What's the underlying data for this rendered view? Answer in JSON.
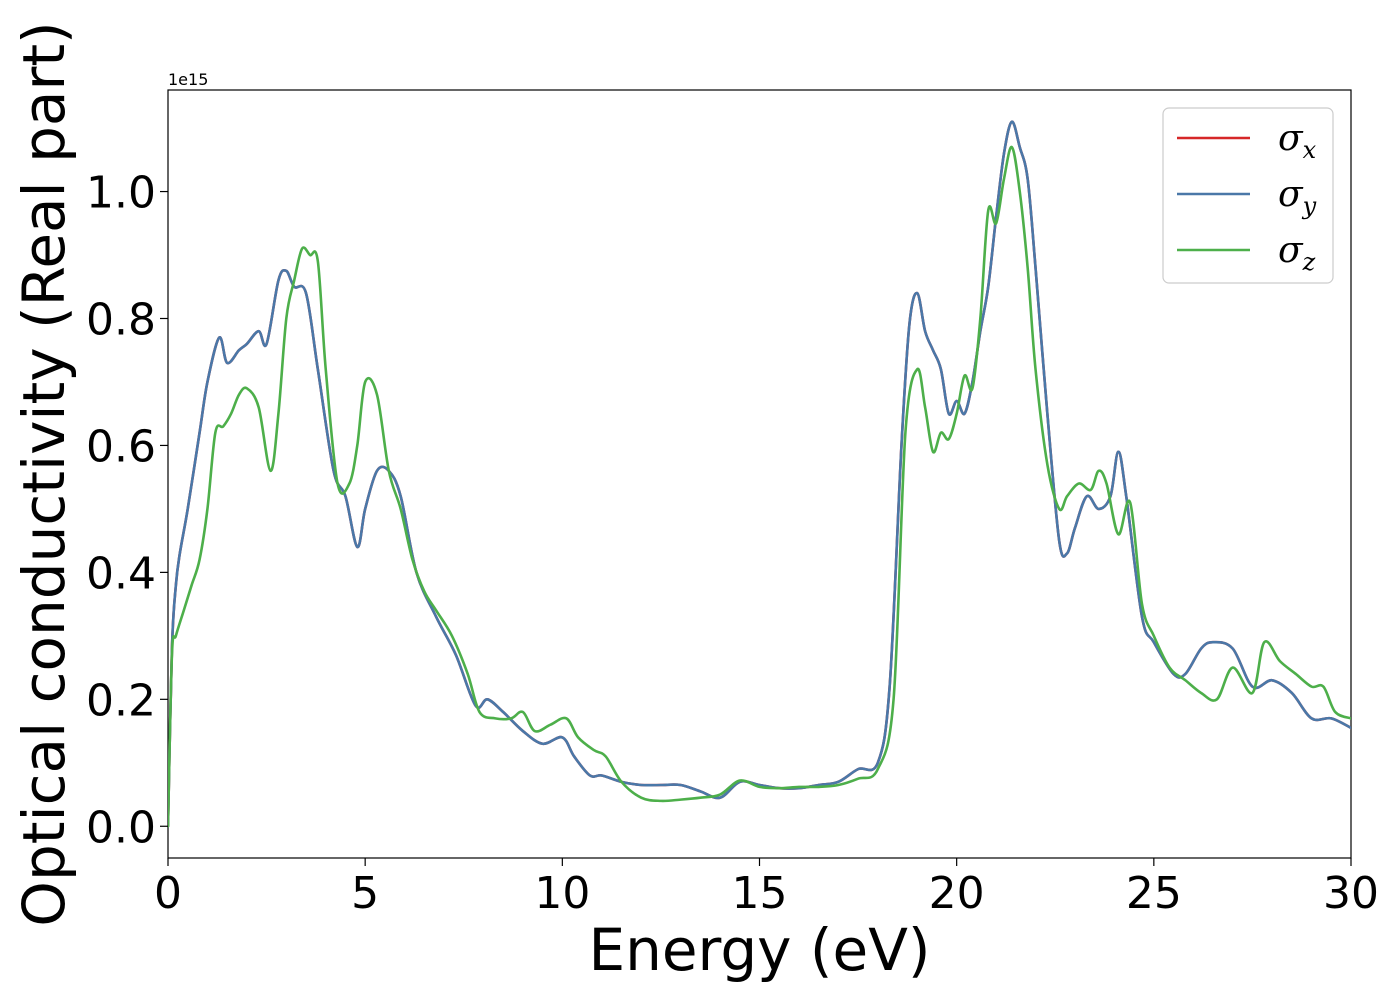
{
  "chart_data": {
    "type": "line",
    "title": "",
    "xlabel": "Energy (eV)",
    "ylabel": "Optical conductivity (Real part)",
    "y_offset_label": "1e15",
    "xlim": [
      0,
      30
    ],
    "ylim": [
      -0.05,
      1.16
    ],
    "xticks": [
      0,
      5,
      10,
      15,
      20,
      25,
      30
    ],
    "xtick_labels": [
      "0",
      "5",
      "10",
      "15",
      "20",
      "25",
      "30"
    ],
    "yticks": [
      0.0,
      0.2,
      0.4,
      0.6,
      0.8,
      1.0
    ],
    "ytick_labels": [
      "0.0",
      "0.2",
      "0.4",
      "0.6",
      "0.8",
      "1.0"
    ],
    "grid": false,
    "legend_position": "top-right",
    "series": [
      {
        "name": "σx",
        "legend_base": "σ",
        "legend_sub": "x",
        "color": "#d62728",
        "x": [
          0,
          0.1,
          0.2,
          0.3,
          0.5,
          0.8,
          1.0,
          1.3,
          1.5,
          1.8,
          2.0,
          2.3,
          2.5,
          2.8,
          3.0,
          3.2,
          3.5,
          3.8,
          4.2,
          4.5,
          4.8,
          5.0,
          5.3,
          5.6,
          5.9,
          6.3,
          6.8,
          7.3,
          7.8,
          8.1,
          8.5,
          9.0,
          9.5,
          10.0,
          10.3,
          10.7,
          11.0,
          11.5,
          12.0,
          12.5,
          13.0,
          13.5,
          14.0,
          14.5,
          15.0,
          15.5,
          16.0,
          16.5,
          17.0,
          17.5,
          18.0,
          18.3,
          18.6,
          18.8,
          19.0,
          19.2,
          19.4,
          19.6,
          19.8,
          20.0,
          20.2,
          20.4,
          20.6,
          20.8,
          21.0,
          21.2,
          21.4,
          21.6,
          21.8,
          22.0,
          22.3,
          22.6,
          22.8,
          23.0,
          23.3,
          23.6,
          23.9,
          24.1,
          24.3,
          24.7,
          25.0,
          25.5,
          25.8,
          26.2,
          26.5,
          27.0,
          27.5,
          28.0,
          28.5,
          29.0,
          29.5,
          30.0
        ],
        "y": [
          0.0,
          0.28,
          0.38,
          0.43,
          0.5,
          0.62,
          0.7,
          0.77,
          0.73,
          0.75,
          0.76,
          0.78,
          0.76,
          0.86,
          0.875,
          0.85,
          0.84,
          0.72,
          0.56,
          0.52,
          0.44,
          0.5,
          0.56,
          0.56,
          0.52,
          0.4,
          0.33,
          0.27,
          0.19,
          0.2,
          0.18,
          0.15,
          0.13,
          0.14,
          0.11,
          0.08,
          0.08,
          0.07,
          0.065,
          0.065,
          0.065,
          0.055,
          0.045,
          0.07,
          0.065,
          0.06,
          0.06,
          0.065,
          0.07,
          0.09,
          0.1,
          0.22,
          0.6,
          0.79,
          0.84,
          0.78,
          0.75,
          0.72,
          0.65,
          0.67,
          0.65,
          0.7,
          0.78,
          0.85,
          0.96,
          1.06,
          1.11,
          1.07,
          1.02,
          0.88,
          0.65,
          0.45,
          0.43,
          0.47,
          0.52,
          0.5,
          0.52,
          0.59,
          0.52,
          0.33,
          0.29,
          0.24,
          0.24,
          0.28,
          0.29,
          0.28,
          0.22,
          0.23,
          0.21,
          0.17,
          0.17,
          0.155
        ]
      },
      {
        "name": "σy",
        "legend_base": "σ",
        "legend_sub": "y",
        "color": "#4a78a8",
        "x": [
          0,
          0.1,
          0.2,
          0.3,
          0.5,
          0.8,
          1.0,
          1.3,
          1.5,
          1.8,
          2.0,
          2.3,
          2.5,
          2.8,
          3.0,
          3.2,
          3.5,
          3.8,
          4.2,
          4.5,
          4.8,
          5.0,
          5.3,
          5.6,
          5.9,
          6.3,
          6.8,
          7.3,
          7.8,
          8.1,
          8.5,
          9.0,
          9.5,
          10.0,
          10.3,
          10.7,
          11.0,
          11.5,
          12.0,
          12.5,
          13.0,
          13.5,
          14.0,
          14.5,
          15.0,
          15.5,
          16.0,
          16.5,
          17.0,
          17.5,
          18.0,
          18.3,
          18.6,
          18.8,
          19.0,
          19.2,
          19.4,
          19.6,
          19.8,
          20.0,
          20.2,
          20.4,
          20.6,
          20.8,
          21.0,
          21.2,
          21.4,
          21.6,
          21.8,
          22.0,
          22.3,
          22.6,
          22.8,
          23.0,
          23.3,
          23.6,
          23.9,
          24.1,
          24.3,
          24.7,
          25.0,
          25.5,
          25.8,
          26.2,
          26.5,
          27.0,
          27.5,
          28.0,
          28.5,
          29.0,
          29.5,
          30.0
        ],
        "y": [
          0.0,
          0.28,
          0.38,
          0.43,
          0.5,
          0.62,
          0.7,
          0.77,
          0.73,
          0.75,
          0.76,
          0.78,
          0.76,
          0.86,
          0.875,
          0.85,
          0.84,
          0.72,
          0.56,
          0.52,
          0.44,
          0.5,
          0.56,
          0.56,
          0.52,
          0.4,
          0.33,
          0.27,
          0.19,
          0.2,
          0.18,
          0.15,
          0.13,
          0.14,
          0.11,
          0.08,
          0.08,
          0.07,
          0.065,
          0.065,
          0.065,
          0.055,
          0.045,
          0.07,
          0.065,
          0.06,
          0.06,
          0.065,
          0.07,
          0.09,
          0.1,
          0.22,
          0.6,
          0.79,
          0.84,
          0.78,
          0.75,
          0.72,
          0.65,
          0.67,
          0.65,
          0.7,
          0.78,
          0.85,
          0.96,
          1.06,
          1.11,
          1.07,
          1.02,
          0.88,
          0.65,
          0.45,
          0.43,
          0.47,
          0.52,
          0.5,
          0.52,
          0.59,
          0.52,
          0.33,
          0.29,
          0.24,
          0.24,
          0.28,
          0.29,
          0.28,
          0.22,
          0.23,
          0.21,
          0.17,
          0.17,
          0.155
        ]
      },
      {
        "name": "σz",
        "legend_base": "σ",
        "legend_sub": "z",
        "color": "#4daf4a",
        "x": [
          0,
          0.1,
          0.2,
          0.4,
          0.6,
          0.8,
          1.0,
          1.2,
          1.4,
          1.6,
          1.8,
          2.0,
          2.3,
          2.6,
          2.8,
          3.0,
          3.2,
          3.4,
          3.6,
          3.8,
          4.0,
          4.3,
          4.6,
          4.8,
          5.0,
          5.3,
          5.6,
          5.9,
          6.2,
          6.5,
          6.8,
          7.2,
          7.6,
          7.9,
          8.3,
          8.7,
          9.0,
          9.3,
          9.7,
          10.1,
          10.4,
          10.8,
          11.1,
          11.5,
          12.0,
          12.5,
          13.0,
          13.5,
          14.0,
          14.5,
          15.0,
          15.5,
          16.0,
          16.5,
          17.0,
          17.5,
          18.0,
          18.4,
          18.7,
          19.0,
          19.2,
          19.4,
          19.6,
          19.8,
          20.0,
          20.2,
          20.4,
          20.6,
          20.8,
          21.0,
          21.2,
          21.4,
          21.6,
          21.8,
          22.0,
          22.3,
          22.6,
          22.8,
          23.1,
          23.4,
          23.6,
          23.8,
          24.1,
          24.4,
          24.7,
          25.0,
          25.4,
          25.8,
          26.2,
          26.6,
          27.0,
          27.5,
          27.8,
          28.2,
          28.6,
          29.0,
          29.3,
          29.6,
          30.0
        ],
        "y": [
          0.0,
          0.27,
          0.3,
          0.34,
          0.38,
          0.42,
          0.5,
          0.62,
          0.63,
          0.65,
          0.68,
          0.69,
          0.66,
          0.56,
          0.65,
          0.8,
          0.86,
          0.91,
          0.9,
          0.89,
          0.72,
          0.54,
          0.54,
          0.6,
          0.7,
          0.68,
          0.56,
          0.5,
          0.42,
          0.37,
          0.34,
          0.3,
          0.24,
          0.18,
          0.17,
          0.17,
          0.18,
          0.15,
          0.16,
          0.17,
          0.14,
          0.12,
          0.11,
          0.07,
          0.045,
          0.04,
          0.042,
          0.045,
          0.05,
          0.072,
          0.062,
          0.06,
          0.062,
          0.062,
          0.065,
          0.075,
          0.09,
          0.2,
          0.62,
          0.72,
          0.66,
          0.59,
          0.62,
          0.61,
          0.65,
          0.71,
          0.69,
          0.8,
          0.97,
          0.95,
          1.02,
          1.07,
          1.0,
          0.88,
          0.72,
          0.57,
          0.5,
          0.52,
          0.54,
          0.53,
          0.56,
          0.54,
          0.46,
          0.51,
          0.35,
          0.3,
          0.25,
          0.23,
          0.21,
          0.2,
          0.25,
          0.21,
          0.29,
          0.26,
          0.24,
          0.22,
          0.22,
          0.18,
          0.17
        ]
      }
    ]
  }
}
